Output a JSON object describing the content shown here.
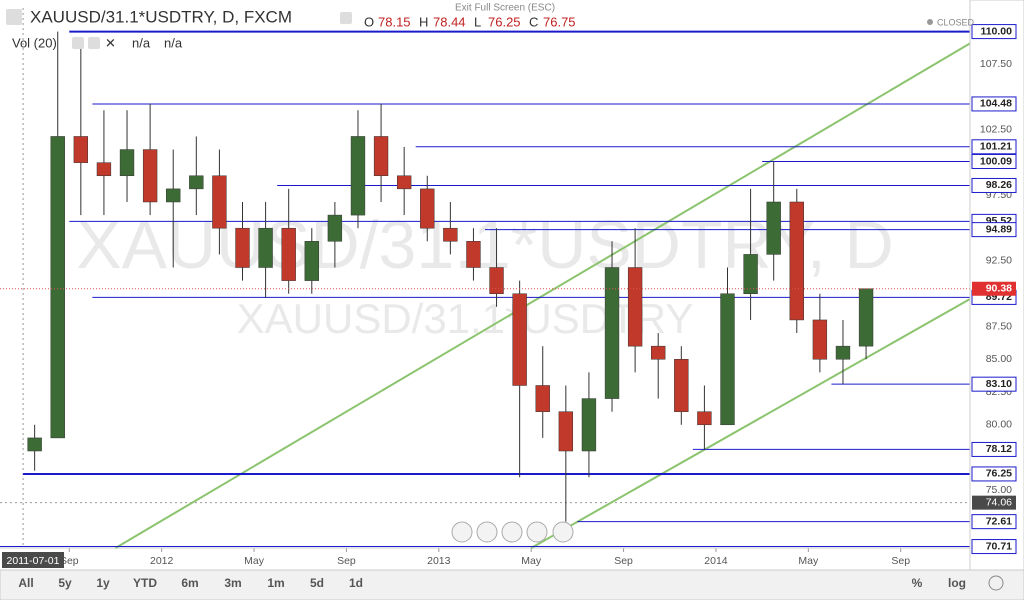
{
  "header": {
    "symbol": "XAUUSD/31.1*USDTRY, D, FXCM",
    "ohlc": [
      {
        "key": "O",
        "value": 78.15
      },
      {
        "key": "H",
        "value": 78.44
      },
      {
        "key": "L",
        "value": 76.25
      },
      {
        "key": "C",
        "value": 76.75
      }
    ],
    "indicator": "Vol (20)",
    "indicator_values": [
      "n/a",
      "n/a"
    ],
    "status": "CLOSED",
    "fullscreen": "Exit Full Screen (ESC)"
  },
  "chart_data": {
    "type": "candlestick",
    "watermark": "XAUUSD/31.1*USDTRY, D",
    "watermark2": "XAUUSD/31.1*USDTRY",
    "x": [
      "2011-07",
      "2011-08",
      "2011-09",
      "2011-10",
      "2011-11",
      "2011-12",
      "2012-01",
      "2012-02",
      "2012-03",
      "2012-04",
      "2012-05",
      "2012-06",
      "2012-07",
      "2012-08",
      "2012-09",
      "2012-10",
      "2012-11",
      "2012-12",
      "2013-01",
      "2013-02",
      "2013-03",
      "2013-04",
      "2013-05",
      "2013-06",
      "2013-07",
      "2013-08",
      "2013-09",
      "2013-10",
      "2013-11",
      "2013-12",
      "2014-01",
      "2014-02",
      "2014-03",
      "2014-04",
      "2014-05",
      "2014-06",
      "2014-07"
    ],
    "open": [
      78,
      79,
      102,
      100,
      99,
      101,
      97,
      98,
      99,
      95,
      92,
      95,
      91,
      94,
      96,
      102,
      99,
      98,
      95,
      94,
      92,
      90,
      83,
      81,
      78,
      82,
      92,
      86,
      85,
      81,
      80,
      90,
      93,
      97,
      88,
      85,
      86
    ],
    "high": [
      80,
      110,
      109,
      104,
      104,
      104.5,
      101,
      102,
      101,
      97,
      97,
      98,
      95,
      97,
      104,
      104.5,
      101.2,
      99,
      97,
      95,
      95,
      91,
      86,
      83,
      84,
      94,
      95,
      87,
      86,
      83,
      92,
      98,
      100.1,
      98,
      90,
      88,
      90.4
    ],
    "low": [
      76.5,
      79,
      96,
      96,
      97,
      96,
      92,
      96,
      93,
      91,
      89.7,
      90,
      90,
      92,
      95,
      97,
      96,
      94,
      93,
      91,
      89,
      76,
      79,
      72.6,
      76,
      81,
      84,
      82,
      80,
      78.1,
      80,
      88,
      91,
      87,
      84,
      83.1,
      85
    ],
    "close": [
      79,
      102,
      100,
      99,
      101,
      97,
      98,
      99,
      95,
      92,
      95,
      91,
      94,
      96,
      102,
      99,
      98,
      95,
      94,
      92,
      90,
      83,
      81,
      78,
      82,
      92,
      86,
      85,
      81,
      80,
      90,
      93,
      97,
      88,
      85,
      86,
      90.38
    ],
    "up_color": "#3d6b35",
    "down_color": "#c0392b",
    "ylim": [
      70.6,
      111.8
    ],
    "yticks": [
      {
        "value": 107.5,
        "label": "107.50"
      },
      {
        "value": 102.5,
        "label": "102.50"
      },
      {
        "value": 97.5,
        "label": "97.50"
      },
      {
        "value": 92.5,
        "label": "92.50"
      },
      {
        "value": 87.5,
        "label": "87.50"
      },
      {
        "value": 85,
        "label": "85.00"
      },
      {
        "value": 82.5,
        "label": "82.50"
      },
      {
        "value": 80,
        "label": "80.00"
      },
      {
        "value": 75,
        "label": "75.00"
      }
    ],
    "xlim": [
      "2011-06",
      "2014-12"
    ],
    "xticks": [
      {
        "value": "2011-09",
        "label": "Sep"
      },
      {
        "value": "2012-01",
        "label": "2012"
      },
      {
        "value": "2012-05",
        "label": "May"
      },
      {
        "value": "2012-09",
        "label": "Sep"
      },
      {
        "value": "2013-01",
        "label": "2013"
      },
      {
        "value": "2013-05",
        "label": "May"
      },
      {
        "value": "2013-09",
        "label": "Sep"
      },
      {
        "value": "2014-01",
        "label": "2014"
      },
      {
        "value": "2014-05",
        "label": "May"
      },
      {
        "value": "2014-09",
        "label": "Sep"
      }
    ],
    "crosshair_date": "2011-07-01",
    "level_color": "#1a1acc",
    "levels": [
      {
        "value": 110,
        "label": "110.00",
        "from": "2011-09",
        "thick": true
      },
      {
        "value": 104.48,
        "label": "104.48",
        "from": "2011-10"
      },
      {
        "value": 101.21,
        "label": "101.21",
        "from": "2012-12"
      },
      {
        "value": 100.09,
        "label": "100.09",
        "from": "2014-03"
      },
      {
        "value": 98.26,
        "label": "98.26",
        "from": "2012-06"
      },
      {
        "value": 95.52,
        "label": "95.52",
        "from": "2011-09"
      },
      {
        "value": 94.89,
        "label": "94.89",
        "from": "2013-03"
      },
      {
        "value": 89.72,
        "label": "89.72",
        "from": "2011-10"
      },
      {
        "value": 83.1,
        "label": "83.10",
        "from": "2014-06"
      },
      {
        "value": 78.12,
        "label": "78.12",
        "from": "2013-12"
      },
      {
        "value": 76.25,
        "label": "76.25",
        "from": "2011-07",
        "thick": true
      },
      {
        "value": 72.61,
        "label": "72.61",
        "from": "2013-07"
      },
      {
        "value": 70.71,
        "label": "70.71",
        "from": "2011-06"
      }
    ],
    "crosshair_price": {
      "value": 74.06,
      "label": "74.06"
    },
    "last_price": {
      "value": 90.38,
      "label": "90.38"
    },
    "trend_color": "#8cc46e",
    "trendlines": [
      {
        "points": [
          [
            "2011-11",
            70.6
          ],
          [
            "2014-12",
            109.1
          ]
        ]
      },
      {
        "points": [
          [
            "2013-05",
            70.6
          ],
          [
            "2014-12",
            89.6
          ]
        ]
      }
    ]
  },
  "toolbar": {
    "ranges": [
      "All",
      "5y",
      "1y",
      "YTD",
      "6m",
      "3m",
      "1m",
      "5d",
      "1d"
    ],
    "right": [
      "%",
      "log"
    ]
  }
}
